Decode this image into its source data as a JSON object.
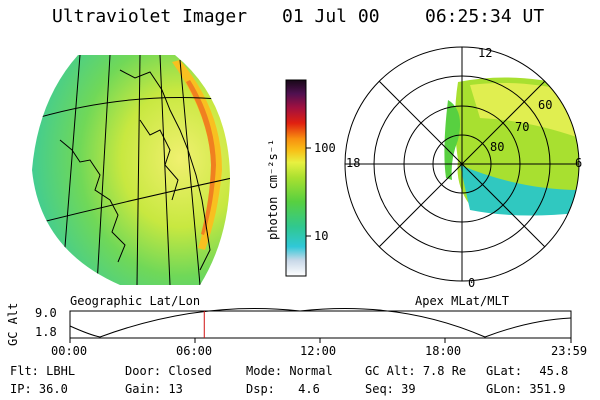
{
  "header": {
    "instrument": "Ultraviolet Imager",
    "date": "01 Jul 00",
    "time": "06:25:34 UT"
  },
  "colorbar": {
    "unit_label": "photon cm⁻²s⁻¹",
    "ticks": [
      "100",
      "10"
    ],
    "scale": "log"
  },
  "geo_panel": {
    "label": "Geographic Lat/Lon"
  },
  "polar_panel": {
    "label": "Apex MLat/MLT",
    "mlt_labels": [
      "12",
      "18",
      "6",
      "0"
    ],
    "lat_labels": [
      "60",
      "70",
      "80"
    ]
  },
  "timeline": {
    "ylabel": "GC Alt",
    "yticks": [
      "9.0",
      "1.8"
    ],
    "xticks": [
      "00:00",
      "06:00",
      "12:00",
      "18:00",
      "23:59"
    ],
    "current_time_fraction": 0.268
  },
  "status": {
    "flt_label": "Flt:",
    "flt_value": "LBHL",
    "ip_label": "IP:",
    "ip_value": "36.0",
    "door_label": "Door:",
    "door_value": "Closed",
    "gain_label": "Gain:",
    "gain_value": "13",
    "mode_label": "Mode:",
    "mode_value": "Normal",
    "dsp_label": "Dsp:",
    "dsp_value": "4.6",
    "gcalt_label": "GC Alt:",
    "gcalt_value": "7.8 Re",
    "seq_label": "Seq:",
    "seq_value": "39",
    "glat_label": "GLat:",
    "glat_value": "45.8",
    "glon_label": "GLon:",
    "glon_value": "351.9"
  }
}
